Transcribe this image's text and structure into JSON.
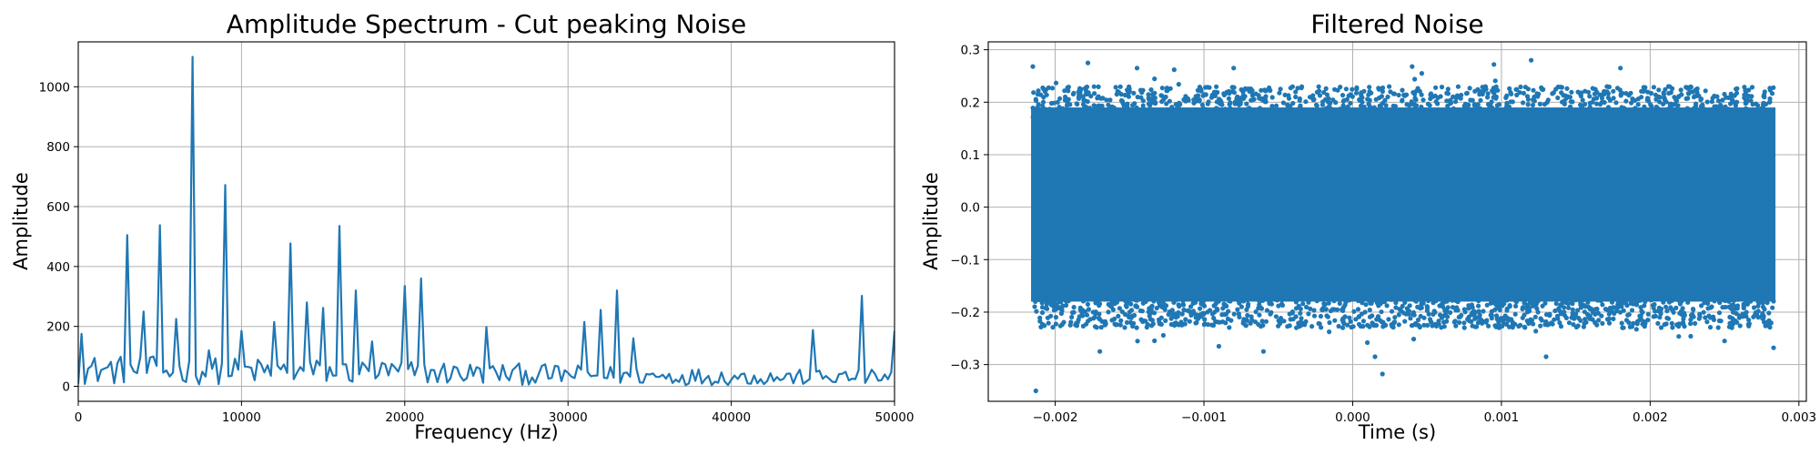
{
  "chart_data": [
    {
      "type": "line",
      "title": "Amplitude Spectrum - Cut peaking Noise",
      "xlabel": "Frequency (Hz)",
      "ylabel": "Amplitude",
      "xlim": [
        0,
        50000
      ],
      "ylim": [
        -50,
        1150
      ],
      "xticks": [
        0,
        10000,
        20000,
        30000,
        40000,
        50000
      ],
      "xtick_labels": [
        "0",
        "10000",
        "20000",
        "30000",
        "40000",
        "50000"
      ],
      "yticks": [
        0,
        200,
        400,
        600,
        800,
        1000
      ],
      "ytick_labels": [
        "0",
        "200",
        "400",
        "600",
        "800",
        "1000"
      ],
      "grid": true,
      "color": "#1f77b4",
      "x_step": 200,
      "peaks": [
        {
          "x": 200,
          "y": 175
        },
        {
          "x": 3000,
          "y": 505
        },
        {
          "x": 4000,
          "y": 250
        },
        {
          "x": 5000,
          "y": 538
        },
        {
          "x": 6000,
          "y": 225
        },
        {
          "x": 7000,
          "y": 1100
        },
        {
          "x": 8000,
          "y": 120
        },
        {
          "x": 9000,
          "y": 672
        },
        {
          "x": 10000,
          "y": 185
        },
        {
          "x": 12000,
          "y": 215
        },
        {
          "x": 13000,
          "y": 477
        },
        {
          "x": 14000,
          "y": 280
        },
        {
          "x": 15000,
          "y": 262
        },
        {
          "x": 16000,
          "y": 535
        },
        {
          "x": 17000,
          "y": 320
        },
        {
          "x": 18000,
          "y": 150
        },
        {
          "x": 20000,
          "y": 335
        },
        {
          "x": 21000,
          "y": 360
        },
        {
          "x": 25000,
          "y": 198
        },
        {
          "x": 31000,
          "y": 215
        },
        {
          "x": 32000,
          "y": 255
        },
        {
          "x": 33000,
          "y": 320
        },
        {
          "x": 34000,
          "y": 160
        },
        {
          "x": 45000,
          "y": 188
        },
        {
          "x": 48000,
          "y": 302
        },
        {
          "x": 50000,
          "y": 185
        }
      ],
      "baseline": [
        {
          "x": 0,
          "y": 65
        },
        {
          "x": 20000,
          "y": 55
        },
        {
          "x": 30000,
          "y": 45
        },
        {
          "x": 42000,
          "y": 35
        },
        {
          "x": 50000,
          "y": 35
        }
      ]
    },
    {
      "type": "scatter",
      "title": "Filtered Noise",
      "xlabel": "Time (s)",
      "ylabel": "Amplitude",
      "xlim": [
        -0.00245,
        0.00305
      ],
      "ylim": [
        -0.37,
        0.315
      ],
      "xticks": [
        -0.002,
        -0.001,
        0.0,
        0.001,
        0.002,
        0.003
      ],
      "xtick_labels": [
        "−0.002",
        "−0.001",
        "0.000",
        "0.001",
        "0.002",
        "0.003"
      ],
      "yticks": [
        -0.3,
        -0.2,
        -0.1,
        0.0,
        0.1,
        0.2,
        0.3
      ],
      "ytick_labels": [
        "−0.3",
        "−0.2",
        "−0.1",
        "0.0",
        "0.1",
        "0.2",
        "0.3"
      ],
      "grid": true,
      "color": "#1f77b4",
      "x_range": [
        -0.00215,
        0.00283
      ],
      "dense_band": [
        -0.18,
        0.19
      ],
      "outliers": [
        {
          "x": -0.00215,
          "y": 0.268
        },
        {
          "x": -0.00178,
          "y": 0.275
        },
        {
          "x": -0.00145,
          "y": 0.265
        },
        {
          "x": -0.0012,
          "y": 0.262
        },
        {
          "x": -0.0008,
          "y": 0.265
        },
        {
          "x": 0.0004,
          "y": 0.268
        },
        {
          "x": 0.00095,
          "y": 0.272
        },
        {
          "x": 0.0012,
          "y": 0.28
        },
        {
          "x": 0.0018,
          "y": 0.265
        },
        {
          "x": -0.00213,
          "y": -0.35
        },
        {
          "x": 0.0002,
          "y": -0.318
        },
        {
          "x": 0.00015,
          "y": -0.285
        },
        {
          "x": 0.0013,
          "y": -0.285
        },
        {
          "x": -0.0017,
          "y": -0.275
        },
        {
          "x": -0.0006,
          "y": -0.275
        },
        {
          "x": 0.00283,
          "y": -0.268
        },
        {
          "x": -0.0009,
          "y": -0.265
        },
        {
          "x": 0.0025,
          "y": -0.255
        }
      ]
    }
  ]
}
